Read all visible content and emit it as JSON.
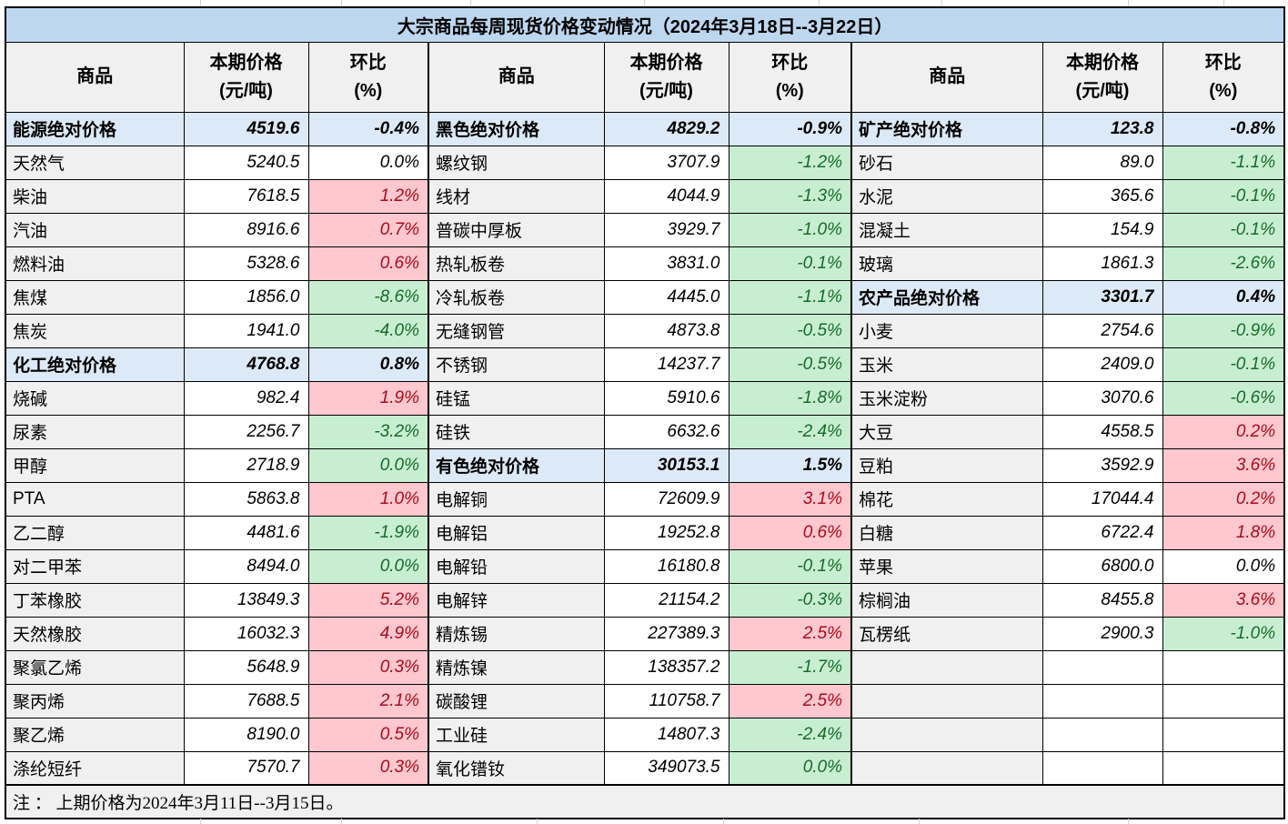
{
  "title": "大宗商品每周现货价格变动情况（2024年3月18日--3月22日）",
  "note": "注 ： 上期价格为2024年3月11日--3月15日。",
  "columns": {
    "commodity": "商品",
    "price_line1": "本期价格",
    "price_line2": "(元/吨)",
    "pct_line1": "环比",
    "pct_line2": "(%)"
  },
  "colors": {
    "title_bg": "#BDD7EE",
    "header_bg": "#F0F0F0",
    "name_bg": "#F0F0F0",
    "section_bg": "#DCE9F6",
    "up_bg": "#FFC7CE",
    "up_text": "#A80C1C",
    "down_bg": "#C8EED2",
    "down_text": "#156B28",
    "note_bg": "#F0F0F0",
    "grid_tick": "#D2D2D2"
  },
  "groups": [
    {
      "rows": [
        {
          "name": "能源绝对价格",
          "price": "4519.6",
          "pct": "-0.4%",
          "type": "section"
        },
        {
          "name": "天然气",
          "price": "5240.5",
          "pct": "0.0%",
          "type": "flat"
        },
        {
          "name": "柴油",
          "price": "7618.5",
          "pct": "1.2%",
          "type": "up"
        },
        {
          "name": "汽油",
          "price": "8916.6",
          "pct": "0.7%",
          "type": "up"
        },
        {
          "name": "燃料油",
          "price": "5328.6",
          "pct": "0.6%",
          "type": "up"
        },
        {
          "name": "焦煤",
          "price": "1856.0",
          "pct": "-8.6%",
          "type": "down"
        },
        {
          "name": "焦炭",
          "price": "1941.0",
          "pct": "-4.0%",
          "type": "down"
        },
        {
          "name": "化工绝对价格",
          "price": "4768.8",
          "pct": "0.8%",
          "type": "section"
        },
        {
          "name": "烧碱",
          "price": "982.4",
          "pct": "1.9%",
          "type": "up"
        },
        {
          "name": "尿素",
          "price": "2256.7",
          "pct": "-3.2%",
          "type": "down"
        },
        {
          "name": "甲醇",
          "price": "2718.9",
          "pct": "0.0%",
          "type": "down"
        },
        {
          "name": "PTA",
          "price": "5863.8",
          "pct": "1.0%",
          "type": "up"
        },
        {
          "name": "乙二醇",
          "price": "4481.6",
          "pct": "-1.9%",
          "type": "down"
        },
        {
          "name": "对二甲苯",
          "price": "8494.0",
          "pct": "0.0%",
          "type": "down"
        },
        {
          "name": "丁苯橡胶",
          "price": "13849.3",
          "pct": "5.2%",
          "type": "up"
        },
        {
          "name": "天然橡胶",
          "price": "16032.3",
          "pct": "4.9%",
          "type": "up"
        },
        {
          "name": "聚氯乙烯",
          "price": "5648.9",
          "pct": "0.3%",
          "type": "up"
        },
        {
          "name": "聚丙烯",
          "price": "7688.5",
          "pct": "2.1%",
          "type": "up"
        },
        {
          "name": "聚乙烯",
          "price": "8190.0",
          "pct": "0.5%",
          "type": "up"
        },
        {
          "name": "涤纶短纤",
          "price": "7570.7",
          "pct": "0.3%",
          "type": "up"
        }
      ]
    },
    {
      "rows": [
        {
          "name": "黑色绝对价格",
          "price": "4829.2",
          "pct": "-0.9%",
          "type": "section"
        },
        {
          "name": "螺纹钢",
          "price": "3707.9",
          "pct": "-1.2%",
          "type": "down"
        },
        {
          "name": "线材",
          "price": "4044.9",
          "pct": "-1.3%",
          "type": "down"
        },
        {
          "name": "普碳中厚板",
          "price": "3929.7",
          "pct": "-1.0%",
          "type": "down"
        },
        {
          "name": "热轧板卷",
          "price": "3831.0",
          "pct": "-0.1%",
          "type": "down"
        },
        {
          "name": "冷轧板卷",
          "price": "4445.0",
          "pct": "-1.1%",
          "type": "down"
        },
        {
          "name": "无缝钢管",
          "price": "4873.8",
          "pct": "-0.5%",
          "type": "down"
        },
        {
          "name": "不锈钢",
          "price": "14237.7",
          "pct": "-0.5%",
          "type": "down"
        },
        {
          "name": "硅锰",
          "price": "5910.6",
          "pct": "-1.8%",
          "type": "down"
        },
        {
          "name": "硅铁",
          "price": "6632.6",
          "pct": "-2.4%",
          "type": "down"
        },
        {
          "name": "有色绝对价格",
          "price": "30153.1",
          "pct": "1.5%",
          "type": "section"
        },
        {
          "name": "电解铜",
          "price": "72609.9",
          "pct": "3.1%",
          "type": "up"
        },
        {
          "name": "电解铝",
          "price": "19252.8",
          "pct": "0.6%",
          "type": "up"
        },
        {
          "name": "电解铅",
          "price": "16180.8",
          "pct": "-0.1%",
          "type": "down"
        },
        {
          "name": "电解锌",
          "price": "21154.2",
          "pct": "-0.3%",
          "type": "down"
        },
        {
          "name": "精炼锡",
          "price": "227389.3",
          "pct": "2.5%",
          "type": "up"
        },
        {
          "name": "精炼镍",
          "price": "138357.2",
          "pct": "-1.7%",
          "type": "down"
        },
        {
          "name": "碳酸锂",
          "price": "110758.7",
          "pct": "2.5%",
          "type": "up"
        },
        {
          "name": "工业硅",
          "price": "14807.3",
          "pct": "-2.4%",
          "type": "down"
        },
        {
          "name": "氧化镨钕",
          "price": "349073.5",
          "pct": "0.0%",
          "type": "down"
        }
      ]
    },
    {
      "rows": [
        {
          "name": "矿产绝对价格",
          "price": "123.8",
          "pct": "-0.8%",
          "type": "section"
        },
        {
          "name": "砂石",
          "price": "89.0",
          "pct": "-1.1%",
          "type": "down"
        },
        {
          "name": "水泥",
          "price": "365.6",
          "pct": "-0.1%",
          "type": "down"
        },
        {
          "name": "混凝土",
          "price": "154.9",
          "pct": "-0.1%",
          "type": "down"
        },
        {
          "name": "玻璃",
          "price": "1861.3",
          "pct": "-2.6%",
          "type": "down"
        },
        {
          "name": "农产品绝对价格",
          "price": "3301.7",
          "pct": "0.4%",
          "type": "section"
        },
        {
          "name": "小麦",
          "price": "2754.6",
          "pct": "-0.9%",
          "type": "down"
        },
        {
          "name": "玉米",
          "price": "2409.0",
          "pct": "-0.1%",
          "type": "down"
        },
        {
          "name": "玉米淀粉",
          "price": "3070.6",
          "pct": "-0.6%",
          "type": "down"
        },
        {
          "name": "大豆",
          "price": "4558.5",
          "pct": "0.2%",
          "type": "up"
        },
        {
          "name": "豆粕",
          "price": "3592.9",
          "pct": "3.6%",
          "type": "up"
        },
        {
          "name": "棉花",
          "price": "17044.4",
          "pct": "0.2%",
          "type": "up"
        },
        {
          "name": "白糖",
          "price": "6722.4",
          "pct": "1.8%",
          "type": "up"
        },
        {
          "name": "苹果",
          "price": "6800.0",
          "pct": "0.0%",
          "type": "flat"
        },
        {
          "name": "棕榈油",
          "price": "8455.8",
          "pct": "3.6%",
          "type": "up"
        },
        {
          "name": "瓦楞纸",
          "price": "2900.3",
          "pct": "-1.0%",
          "type": "down"
        },
        {
          "name": "",
          "price": "",
          "pct": "",
          "type": "empty"
        },
        {
          "name": "",
          "price": "",
          "pct": "",
          "type": "empty"
        },
        {
          "name": "",
          "price": "",
          "pct": "",
          "type": "empty"
        },
        {
          "name": "",
          "price": "",
          "pct": "",
          "type": "empty"
        }
      ]
    }
  ]
}
